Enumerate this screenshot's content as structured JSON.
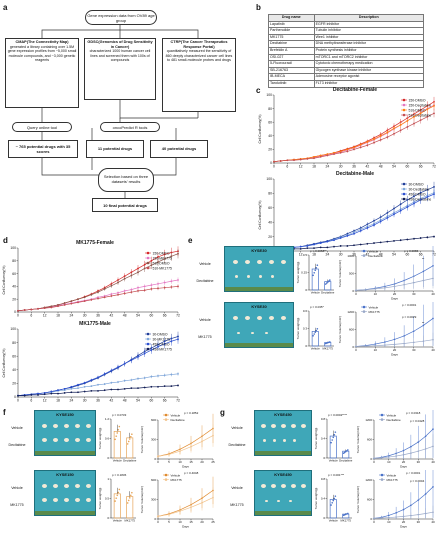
{
  "panels": {
    "a": "a",
    "b": "b",
    "c": "c",
    "d": "d",
    "e": "e",
    "f": "f",
    "g": "g"
  },
  "flow": {
    "top": "Gene expression data from OV89 age group",
    "cmap_title": "CMAP(The Connectivity Map)",
    "cmap_text": "generated a library containing over 1.5M gene expression profiles from ~5,000 small molecule compounds, and ~3,000 genetic reagents",
    "gdsc_title": "GDSC(Genomics of Drug Sensitivity in Cancer)",
    "gdsc_text": "characterized 1000 human cancer cell lines and screened them with 100s of compounds",
    "ctrp_title": "CTRP(The Cancer Therapeutics Response Portal)",
    "ctrp_text": "quantitatively measured the sensitivity of 860 deeply characterized cancer cell lines to 481 small-molecule probes and drugs",
    "query": "Query online tool",
    "oncopredict": "oncoPredict R tools",
    "res1": "~ 765 potential drugs with 35 scores",
    "res2": "11 potential drugs",
    "res3": "40 potential drugs",
    "selection": "Selection based on three datasets' results",
    "final": "10 final potential drugs"
  },
  "table": {
    "headers": [
      "Drug name",
      "Description"
    ],
    "rows": [
      [
        "Lapatinib",
        "EGFR inhibitor"
      ],
      [
        "Parthenolide",
        "Tubulin inhibitor"
      ],
      [
        "MK1775",
        "Wee1 inhibitor"
      ],
      [
        "Decitabine",
        "DNA methyltransferase inhibitor"
      ],
      [
        "Brefeldin A",
        "Protein synthesis inhibitor"
      ],
      [
        "OSI-027",
        "mTORC1 and mTORC2 inhibitor"
      ],
      [
        "5-Fluorouracil",
        "Cytotoxic chemotherapy medication"
      ],
      [
        "SB-216763",
        "Glycogen synthase kinase inhibitor"
      ],
      [
        "IB-MECA",
        "Adenosine receptor agonist"
      ],
      [
        "Tandutinib",
        "FLT3 inhibitor"
      ]
    ]
  },
  "chart_data": [
    {
      "id": "c-female",
      "type": "line",
      "title": "Decitabine-Female",
      "xlabel": "",
      "ylabel": "Cell Confluency(%)",
      "ylim": [
        0,
        100
      ],
      "x": [
        0,
        3,
        6,
        9,
        12,
        15,
        18,
        21,
        24,
        27,
        30,
        33,
        36,
        39,
        42,
        45,
        48,
        51,
        54,
        57,
        60,
        63,
        66,
        69,
        72
      ],
      "series": [
        {
          "name": "150-DMSO",
          "color": "#d62728",
          "values": [
            2,
            3,
            4,
            5,
            6,
            7,
            9,
            11,
            13,
            15,
            18,
            21,
            24,
            28,
            32,
            37,
            42,
            48,
            54,
            60,
            66,
            72,
            78,
            84,
            90
          ]
        },
        {
          "name": "150-Decitabine",
          "color": "#e377c2",
          "values": [
            2,
            3,
            4,
            5,
            6,
            7,
            8,
            10,
            12,
            14,
            16,
            19,
            22,
            26,
            30,
            34,
            39,
            44,
            50,
            56,
            62,
            68,
            74,
            80,
            85
          ]
        },
        {
          "name": "510-DMSO",
          "color": "#ff7f0e",
          "values": [
            2,
            3,
            4,
            5,
            6,
            7,
            9,
            11,
            13,
            15,
            17,
            20,
            23,
            27,
            31,
            35,
            40,
            45,
            51,
            56,
            62,
            68,
            73,
            79,
            84
          ]
        },
        {
          "name": "510-Decitabine",
          "color": "#c44e52",
          "values": [
            2,
            3,
            4,
            4,
            5,
            6,
            7,
            9,
            11,
            13,
            15,
            17,
            20,
            23,
            26,
            30,
            34,
            38,
            43,
            48,
            53,
            58,
            63,
            68,
            73
          ]
        }
      ]
    },
    {
      "id": "c-male",
      "type": "line",
      "title": "Decitabine-Male",
      "xlabel": "",
      "ylabel": "Cell Confluency(%)",
      "ylim": [
        0,
        100
      ],
      "x": [
        0,
        3,
        6,
        9,
        12,
        15,
        18,
        21,
        24,
        27,
        30,
        33,
        36,
        39,
        42,
        45,
        48,
        51,
        54,
        57,
        60,
        63,
        66,
        69,
        72
      ],
      "series": [
        {
          "name": "30-DMSO",
          "color": "#1f3d99",
          "values": [
            2,
            3,
            4,
            5,
            6,
            8,
            10,
            12,
            14,
            17,
            20,
            24,
            28,
            32,
            37,
            42,
            47,
            53,
            59,
            65,
            71,
            76,
            81,
            85,
            89
          ]
        },
        {
          "name": "30-Decitabine",
          "color": "#7fa6d9",
          "values": [
            2,
            3,
            4,
            5,
            6,
            7,
            9,
            11,
            13,
            16,
            19,
            22,
            26,
            30,
            34,
            38,
            43,
            48,
            53,
            58,
            63,
            68,
            73,
            77,
            81
          ]
        },
        {
          "name": "450-DMSO",
          "color": "#2b4fd1",
          "values": [
            2,
            3,
            4,
            5,
            6,
            7,
            9,
            11,
            13,
            15,
            18,
            21,
            24,
            28,
            32,
            36,
            41,
            46,
            51,
            56,
            61,
            66,
            71,
            75,
            79
          ]
        },
        {
          "name": "450-Decitabine",
          "color": "#111d55",
          "values": [
            1,
            2,
            2,
            3,
            3,
            4,
            4,
            5,
            5,
            6,
            7,
            7,
            8,
            9,
            10,
            11,
            12,
            13,
            14,
            15,
            16,
            17,
            18,
            19,
            20
          ]
        }
      ]
    },
    {
      "id": "d-female",
      "type": "line",
      "title": "MK1775-Female",
      "xlabel": "",
      "ylabel": "Cell Confluency(%)",
      "ylim": [
        0,
        100
      ],
      "x": [
        0,
        3,
        6,
        9,
        12,
        15,
        18,
        21,
        24,
        27,
        30,
        33,
        36,
        39,
        42,
        45,
        48,
        51,
        54,
        57,
        60,
        63,
        66,
        69,
        72
      ],
      "series": [
        {
          "name": "150-DMSO",
          "color": "#d62728",
          "values": [
            2,
            3,
            4,
            5,
            7,
            9,
            11,
            14,
            17,
            20,
            24,
            28,
            33,
            38,
            44,
            50,
            56,
            62,
            68,
            74,
            80,
            86,
            90,
            93,
            95
          ]
        },
        {
          "name": "150-MK1775",
          "color": "#e377c2",
          "values": [
            2,
            3,
            4,
            5,
            6,
            8,
            10,
            12,
            14,
            16,
            18,
            20,
            23,
            25,
            28,
            30,
            33,
            35,
            38,
            40,
            42,
            44,
            46,
            48,
            50
          ]
        },
        {
          "name": "510-DMSO",
          "color": "#8c564b",
          "values": [
            2,
            3,
            4,
            5,
            7,
            9,
            11,
            14,
            17,
            20,
            23,
            27,
            31,
            36,
            41,
            46,
            52,
            57,
            62,
            68,
            73,
            78,
            83,
            87,
            91
          ]
        },
        {
          "name": "510-MK1775",
          "color": "#c44e52",
          "values": [
            2,
            3,
            4,
            5,
            6,
            7,
            9,
            11,
            13,
            15,
            17,
            19,
            21,
            23,
            25,
            27,
            29,
            31,
            33,
            34,
            36,
            37,
            38,
            39,
            40
          ]
        }
      ]
    },
    {
      "id": "d-male",
      "type": "line",
      "title": "MK1775-Male",
      "xlabel": "",
      "ylabel": "Cell Confluency(%)",
      "ylim": [
        0,
        100
      ],
      "x": [
        0,
        3,
        6,
        9,
        12,
        15,
        18,
        21,
        24,
        27,
        30,
        33,
        36,
        39,
        42,
        45,
        48,
        51,
        54,
        57,
        60,
        63,
        66,
        69,
        72
      ],
      "series": [
        {
          "name": "30-DMSO",
          "color": "#1f3d99",
          "values": [
            2,
            3,
            4,
            5,
            6,
            8,
            10,
            12,
            14,
            17,
            20,
            24,
            28,
            33,
            38,
            43,
            49,
            55,
            61,
            67,
            72,
            77,
            82,
            86,
            89
          ]
        },
        {
          "name": "30-MK1775",
          "color": "#7fa6d9",
          "values": [
            2,
            3,
            4,
            5,
            6,
            7,
            9,
            10,
            12,
            13,
            15,
            16,
            18,
            19,
            21,
            22,
            24,
            25,
            27,
            28,
            30,
            31,
            32,
            33,
            34
          ]
        },
        {
          "name": "450-DMSO",
          "color": "#2b4fd1",
          "values": [
            2,
            3,
            4,
            5,
            6,
            8,
            10,
            12,
            15,
            18,
            21,
            25,
            29,
            34,
            39,
            44,
            49,
            54,
            59,
            64,
            69,
            74,
            78,
            82,
            85
          ]
        },
        {
          "name": "450-MK1775",
          "color": "#111d55",
          "values": [
            2,
            2,
            3,
            3,
            4,
            5,
            5,
            6,
            7,
            7,
            8,
            9,
            9,
            10,
            11,
            11,
            12,
            13,
            13,
            14,
            15,
            15,
            16,
            16,
            17
          ]
        }
      ]
    },
    {
      "id": "e-dec-bar",
      "type": "bar",
      "ylabel": "Tumor weight(g)",
      "categories": [
        "Vehicle",
        "Decitabine"
      ],
      "values": [
        0.3,
        0.12
      ],
      "ylim": [
        0,
        0.5
      ],
      "annotation": "p = 0.0058**",
      "colors": [
        "#4a72c9",
        "#4a72c9"
      ]
    },
    {
      "id": "e-dec-line",
      "type": "line",
      "ylabel": "Tumor Volume(mm³)",
      "xlabel": "Days",
      "x": [
        0,
        5,
        10,
        15,
        20,
        25,
        30,
        35,
        40
      ],
      "ylim": [
        0,
        1000
      ],
      "series": [
        {
          "name": "Vehicle",
          "color": "#4a72c9",
          "values": [
            20,
            40,
            80,
            130,
            200,
            300,
            420,
            560,
            720
          ]
        },
        {
          "name": "Decitabine",
          "color": "#9aa9c9",
          "values": [
            20,
            35,
            60,
            90,
            130,
            180,
            240,
            300,
            360
          ]
        }
      ],
      "annotations": [
        "p = 0.0086",
        "**"
      ]
    },
    {
      "id": "e-mk-bar",
      "type": "bar",
      "ylabel": "Tumor weight(g)",
      "categories": [
        "Vehicle",
        "MK1775"
      ],
      "values": [
        0.25,
        0.06
      ],
      "ylim": [
        0,
        0.6
      ],
      "annotation": "p = 0.035*",
      "colors": [
        "#4a72c9",
        "#4a72c9"
      ]
    },
    {
      "id": "e-mk-line",
      "type": "line",
      "ylabel": "Tumor Volume(mm³)",
      "xlabel": "Days",
      "x": [
        0,
        5,
        10,
        15,
        20,
        25,
        30,
        35,
        40
      ],
      "ylim": [
        0,
        1200
      ],
      "series": [
        {
          "name": "Vehicle",
          "color": "#4a72c9",
          "values": [
            20,
            50,
            100,
            170,
            260,
            380,
            540,
            740,
            980
          ]
        },
        {
          "name": "MK1775",
          "color": "#9aa9c9",
          "values": [
            20,
            30,
            45,
            65,
            90,
            120,
            160,
            200,
            250
          ]
        }
      ],
      "annotations": [
        "p < 0.0001",
        "p = 0.0029",
        "**"
      ]
    },
    {
      "id": "f-dec-bar",
      "type": "bar",
      "ylabel": "Tumor weight(g)",
      "categories": [
        "Vehicle",
        "Decitabine"
      ],
      "values": [
        0.82,
        0.62
      ],
      "ylim": [
        0,
        1.2
      ],
      "annotation": "p = 0.0733",
      "colors": [
        "#e6a55a",
        "#e6a55a"
      ]
    },
    {
      "id": "f-dec-line",
      "type": "line",
      "ylabel": "Tumor Volume(mm³)",
      "xlabel": "Days",
      "x": [
        0,
        5,
        10,
        15,
        20,
        25
      ],
      "ylim": [
        0,
        600
      ],
      "series": [
        {
          "name": "Vehicle",
          "color": "#e08a2e",
          "values": [
            40,
            80,
            150,
            240,
            350,
            470
          ]
        },
        {
          "name": "Decitabine",
          "color": "#f2c48e",
          "values": [
            40,
            70,
            120,
            190,
            270,
            360
          ]
        }
      ],
      "annotations": [
        "p = 0.1852"
      ]
    },
    {
      "id": "f-mk-bar",
      "type": "bar",
      "ylabel": "Tumor weight(g)",
      "categories": [
        "Vehicle",
        "MK1775"
      ],
      "values": [
        0.62,
        0.55
      ],
      "ylim": [
        0,
        1.0
      ],
      "annotation": "p = 0.1836",
      "colors": [
        "#e6a55a",
        "#e6a55a"
      ]
    },
    {
      "id": "f-mk-line",
      "type": "line",
      "ylabel": "Tumor Volume(mm³)",
      "xlabel": "Days",
      "x": [
        0,
        5,
        10,
        15,
        20,
        25
      ],
      "ylim": [
        0,
        600
      ],
      "series": [
        {
          "name": "Vehicle",
          "color": "#e08a2e",
          "values": [
            40,
            80,
            140,
            220,
            320,
            440
          ]
        },
        {
          "name": "MK1775",
          "color": "#f2c48e",
          "values": [
            40,
            70,
            120,
            180,
            250,
            330
          ]
        }
      ],
      "annotations": [
        "p = 0.4048"
      ]
    },
    {
      "id": "g-dec-bar",
      "type": "bar",
      "ylabel": "Tumor weight(g)",
      "categories": [
        "Vehicle",
        "Decitabine"
      ],
      "values": [
        0.45,
        0.14
      ],
      "ylim": [
        0,
        0.8
      ],
      "annotation": "p = 0.0002****",
      "colors": [
        "#4a72c9",
        "#4a72c9"
      ]
    },
    {
      "id": "g-dec-line",
      "type": "line",
      "ylabel": "Tumor Volume(mm³)",
      "xlabel": "Days",
      "x": [
        0,
        5,
        10,
        15,
        20,
        25,
        30,
        35,
        40
      ],
      "ylim": [
        0,
        1200
      ],
      "series": [
        {
          "name": "Vehicle",
          "color": "#4a72c9",
          "values": [
            20,
            50,
            100,
            170,
            260,
            380,
            520,
            700,
            920
          ]
        },
        {
          "name": "Decitabine",
          "color": "#9aa9c9",
          "values": [
            20,
            35,
            60,
            90,
            130,
            180,
            240,
            310,
            390
          ]
        }
      ],
      "annotations": [
        "p = 0.0318",
        "p = 0.0428"
      ]
    },
    {
      "id": "g-mk-bar",
      "type": "bar",
      "ylabel": "Tumor weight(g)",
      "categories": [
        "Vehicle",
        "MK1775"
      ],
      "values": [
        0.38,
        0.08
      ],
      "ylim": [
        0,
        0.8
      ],
      "annotation": "p = 0.001***",
      "colors": [
        "#4a72c9",
        "#4a72c9"
      ]
    },
    {
      "id": "g-mk-line",
      "type": "line",
      "ylabel": "Tumor Volume(mm³)",
      "xlabel": "Days",
      "x": [
        0,
        5,
        10,
        15,
        20,
        25,
        30,
        35,
        40
      ],
      "ylim": [
        0,
        1200
      ],
      "series": [
        {
          "name": "Vehicle",
          "color": "#4a72c9",
          "values": [
            20,
            50,
            110,
            190,
            290,
            420,
            580,
            770,
            990
          ]
        },
        {
          "name": "MK1775",
          "color": "#9aa9c9",
          "values": [
            20,
            30,
            45,
            60,
            80,
            105,
            135,
            170,
            210
          ]
        }
      ],
      "annotations": [
        "p < 0.0001",
        "p = 0.0004"
      ]
    }
  ],
  "xenograft": {
    "kyse30": "KYSE30",
    "kyse150": "KYSE150",
    "kyse450": "KYSE450",
    "vehicle": "Vehicle",
    "decitabine": "Decitabine",
    "mk1775": "MK1775"
  }
}
